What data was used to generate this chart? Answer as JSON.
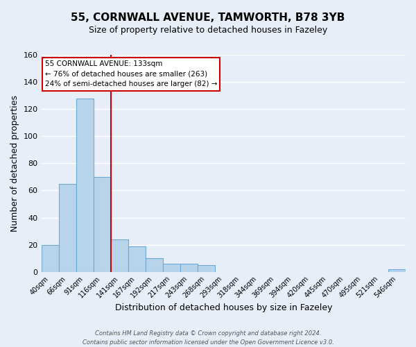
{
  "title_line1": "55, CORNWALL AVENUE, TAMWORTH, B78 3YB",
  "title_line2": "Size of property relative to detached houses in Fazeley",
  "xlabel": "Distribution of detached houses by size in Fazeley",
  "ylabel": "Number of detached properties",
  "bin_labels": [
    "40sqm",
    "66sqm",
    "91sqm",
    "116sqm",
    "141sqm",
    "167sqm",
    "192sqm",
    "217sqm",
    "243sqm",
    "268sqm",
    "293sqm",
    "318sqm",
    "344sqm",
    "369sqm",
    "394sqm",
    "420sqm",
    "445sqm",
    "470sqm",
    "495sqm",
    "521sqm",
    "546sqm"
  ],
  "bar_values": [
    20,
    65,
    128,
    70,
    24,
    19,
    10,
    6,
    6,
    5,
    0,
    0,
    0,
    0,
    0,
    0,
    0,
    0,
    0,
    0,
    2
  ],
  "bar_color": "#b8d4ea",
  "bar_edge_color": "#6aaad4",
  "background_color": "#e8eef8",
  "grid_color": "#ffffff",
  "vline_x": 3.5,
  "vline_color": "#cc0000",
  "ylim": [
    0,
    160
  ],
  "yticks": [
    0,
    20,
    40,
    60,
    80,
    100,
    120,
    140,
    160
  ],
  "annotation_title": "55 CORNWALL AVENUE: 133sqm",
  "annotation_line1": "← 76% of detached houses are smaller (263)",
  "annotation_line2": "24% of semi-detached houses are larger (82) →",
  "annotation_box_color": "#ffffff",
  "annotation_box_edge": "#cc0000",
  "footer_line1": "Contains HM Land Registry data © Crown copyright and database right 2024.",
  "footer_line2": "Contains public sector information licensed under the Open Government Licence v3.0."
}
